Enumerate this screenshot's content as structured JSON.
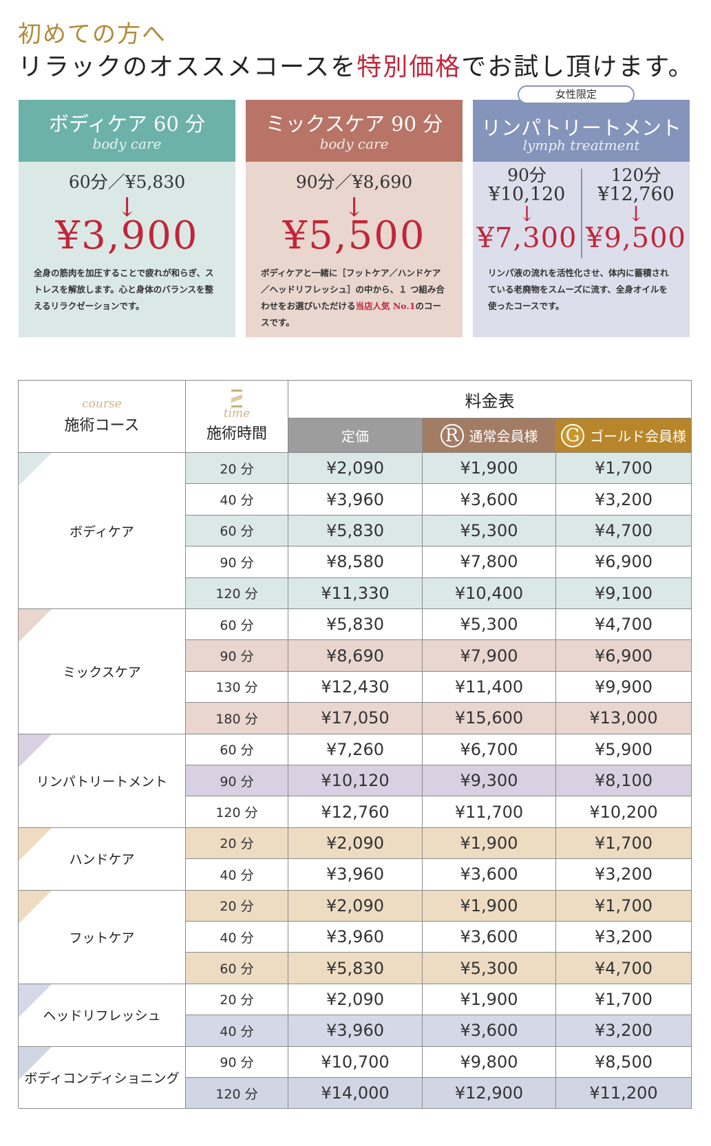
{
  "header": {
    "line1": "初めての方へ",
    "line2_before": "リラックのオススメコースを",
    "line2_highlight": "特別価格",
    "line2_after": "でお試し頂けます。"
  },
  "cards": [
    {
      "title": "ボディケア 60 分",
      "subtitle": "body care",
      "original": "60分／¥5,830",
      "price": "¥3,900",
      "description": [
        "全身の筋肉を加圧することで疲れが和らぎ、ストレスを解放します。心と身体のバランスを整えるリラクゼーションです。"
      ]
    },
    {
      "title": "ミックスケア 90 分",
      "subtitle": "body care",
      "original": "90分／¥8,690",
      "price": "¥5,500",
      "description": [
        "ボディケアと一緒に［フットケア／ハンドケア／ヘッドリフレッシュ］の中から、１ つ組み合わせをお選びいただける",
        "当店人気 No.1",
        "のコースです。"
      ]
    },
    {
      "badge": "女性限定",
      "title": "リンパトリートメント",
      "subtitle": "lymph treatment",
      "options": [
        {
          "duration": "90分",
          "original": "¥10,120",
          "price": "¥7,300"
        },
        {
          "duration": "120分",
          "original": "¥12,760",
          "price": "¥9,500"
        }
      ],
      "description": [
        "リンパ液の流れを活性化させ、体内に蓄積されている老廃物をスムーズに流す、全身オイルを使ったコースです。"
      ]
    }
  ],
  "table": {
    "course_icon": "course",
    "course_header": "施術コース",
    "time_icon": "time",
    "time_header": "施術時間",
    "price_header": "料金表",
    "columns": [
      "定価",
      "通常会員様",
      "ゴールド会員様"
    ],
    "member_marks": [
      "R",
      "G"
    ],
    "groups": [
      {
        "name": "ボディケア",
        "color": "#dbe9e6",
        "rows": [
          [
            "20 分",
            "¥2,090",
            "¥1,900",
            "¥1,700"
          ],
          [
            "40 分",
            "¥3,960",
            "¥3,600",
            "¥3,200"
          ],
          [
            "60 分",
            "¥5,830",
            "¥5,300",
            "¥4,700"
          ],
          [
            "90 分",
            "¥8,580",
            "¥7,800",
            "¥6,900"
          ],
          [
            "120 分",
            "¥11,330",
            "¥10,400",
            "¥9,100"
          ]
        ]
      },
      {
        "name": "ミックスケア",
        "color": "#e9d6ce",
        "rows": [
          [
            "60 分",
            "¥5,830",
            "¥5,300",
            "¥4,700"
          ],
          [
            "90 分",
            "¥8,690",
            "¥7,900",
            "¥6,900"
          ],
          [
            "130 分",
            "¥12,430",
            "¥11,400",
            "¥9,900"
          ],
          [
            "180 分",
            "¥17,050",
            "¥15,600",
            "¥13,000"
          ]
        ]
      },
      {
        "name": "リンパトリートメント",
        "color": "#d9d0e1",
        "rows": [
          [
            "60 分",
            "¥7,260",
            "¥6,700",
            "¥5,900"
          ],
          [
            "90 分",
            "¥10,120",
            "¥9,300",
            "¥8,100"
          ],
          [
            "120 分",
            "¥12,760",
            "¥11,700",
            "¥10,200"
          ]
        ]
      },
      {
        "name": "ハンドケア",
        "color": "#eddcc2",
        "rows": [
          [
            "20 分",
            "¥2,090",
            "¥1,900",
            "¥1,700"
          ],
          [
            "40 分",
            "¥3,960",
            "¥3,600",
            "¥3,200"
          ]
        ]
      },
      {
        "name": "フットケア",
        "color": "#eddcc2",
        "rows": [
          [
            "20 分",
            "¥2,090",
            "¥1,900",
            "¥1,700"
          ],
          [
            "40 分",
            "¥3,960",
            "¥3,600",
            "¥3,200"
          ],
          [
            "60 分",
            "¥5,830",
            "¥5,300",
            "¥4,700"
          ]
        ]
      },
      {
        "name": "ヘッドリフレッシュ",
        "color": "#d4d8e7",
        "rows": [
          [
            "20 分",
            "¥2,090",
            "¥1,900",
            "¥1,700"
          ],
          [
            "40 分",
            "¥3,960",
            "¥3,600",
            "¥3,200"
          ]
        ]
      },
      {
        "name": "ボディコンディショニング",
        "color": "#d1d6e5",
        "rows": [
          [
            "90 分",
            "¥10,700",
            "¥9,800",
            "¥8,500"
          ],
          [
            "120 分",
            "¥14,000",
            "¥12,900",
            "¥11,200"
          ]
        ]
      }
    ]
  }
}
